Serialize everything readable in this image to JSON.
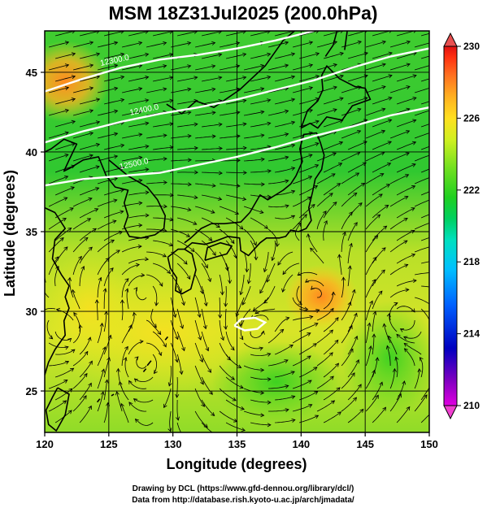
{
  "title": "MSM 18Z31Jul2025 (200.0hPa)",
  "xaxis": {
    "label": "Longitude (degrees)",
    "range": [
      120,
      150
    ],
    "ticks": [
      120,
      125,
      130,
      135,
      140,
      145,
      150
    ],
    "tick_labels": [
      "120",
      "125",
      "130",
      "135",
      "140",
      "145",
      "150"
    ]
  },
  "yaxis": {
    "label": "Latitude  (degrees)",
    "range": [
      22.4,
      47.6
    ],
    "ticks": [
      25,
      30,
      35,
      40,
      45
    ],
    "tick_labels": [
      "25",
      "30",
      "35",
      "40",
      "45"
    ]
  },
  "colorbar": {
    "range": [
      210,
      230
    ],
    "ticks": [
      210,
      214,
      218,
      222,
      226,
      230
    ],
    "tick_labels": [
      "210",
      "214",
      "218",
      "222",
      "226",
      "230"
    ],
    "colors": [
      "#e000e0",
      "#8000c0",
      "#0000c0",
      "#0060ff",
      "#00c0ff",
      "#00e0c0",
      "#00d060",
      "#20d020",
      "#70e020",
      "#d0f020",
      "#ffe020",
      "#ffb020",
      "#ff7020",
      "#ff3010",
      "#e01010"
    ]
  },
  "contours": [
    {
      "label": "12300.0",
      "points": [
        [
          120,
          43.8
        ],
        [
          123,
          44.6
        ],
        [
          126,
          45.3
        ],
        [
          129,
          45.8
        ],
        [
          132,
          46.1
        ],
        [
          135,
          46.5
        ],
        [
          138,
          47.0
        ],
        [
          141,
          47.6
        ]
      ]
    },
    {
      "label": "12400.0",
      "points": [
        [
          120,
          40.6
        ],
        [
          123,
          41.3
        ],
        [
          126,
          41.9
        ],
        [
          129,
          42.4
        ],
        [
          132,
          42.8
        ],
        [
          135,
          43.3
        ],
        [
          138,
          43.9
        ],
        [
          141,
          44.5
        ],
        [
          144,
          45.3
        ],
        [
          147,
          46.0
        ],
        [
          150,
          46.5
        ]
      ]
    },
    {
      "label": "12500.0",
      "points": [
        [
          120,
          37.9
        ],
        [
          123,
          38.3
        ],
        [
          126,
          38.5
        ],
        [
          129,
          38.7
        ],
        [
          132,
          39.2
        ],
        [
          135,
          39.7
        ],
        [
          138,
          40.3
        ],
        [
          141,
          41.0
        ],
        [
          144,
          41.6
        ],
        [
          147,
          42.3
        ],
        [
          150,
          42.8
        ]
      ]
    },
    {
      "label": "",
      "points": [
        [
          134.8,
          29.1
        ],
        [
          135.6,
          28.8
        ],
        [
          136.6,
          28.9
        ],
        [
          137.2,
          29.3
        ],
        [
          136.4,
          29.6
        ],
        [
          135.3,
          29.5
        ],
        [
          134.8,
          29.1
        ]
      ]
    }
  ],
  "contour_label_positions": [
    [
      125.5,
      45.6
    ],
    [
      127.8,
      42.5
    ],
    [
      127.0,
      39.1
    ]
  ],
  "credits": {
    "line1": "Drawing by DCL (https://www.gfd-dennou.org/library/dcl/)",
    "line2": "Data from http://database.rish.kyoto-u.ac.jp/arch/jmadata/"
  }
}
